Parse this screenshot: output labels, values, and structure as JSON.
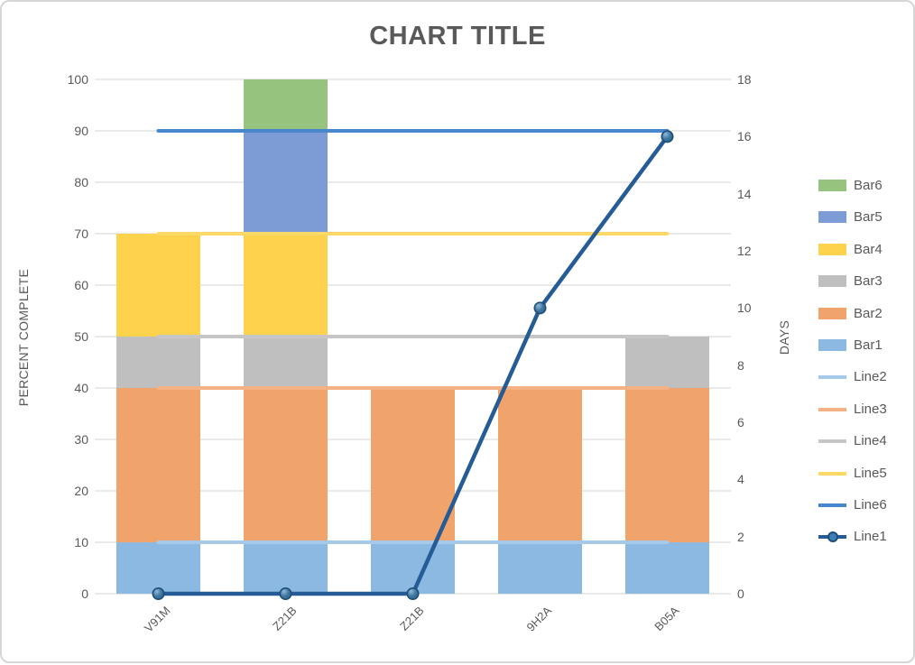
{
  "title": "CHART TITLE",
  "chart_data": {
    "type": "combo-stacked-bar-line",
    "categories": [
      "V91M",
      "Z21B",
      "Z21B",
      "9H2A",
      "B05A"
    ],
    "left_axis": {
      "title": "PERCENT COMPLETE",
      "min": 0,
      "max": 100,
      "step": 10
    },
    "right_axis": {
      "title": "DAYS",
      "min": 0,
      "max": 18,
      "step": 2
    },
    "grid": true,
    "legend_position": "right",
    "bar_series": [
      {
        "name": "Bar1",
        "color": "#8CB9E2",
        "values": [
          10,
          10,
          10,
          10,
          10
        ]
      },
      {
        "name": "Bar2",
        "color": "#F0A46C",
        "values": [
          30,
          30,
          30,
          30,
          30
        ]
      },
      {
        "name": "Bar3",
        "color": "#BFBFBF",
        "values": [
          10,
          10,
          0,
          0,
          10
        ]
      },
      {
        "name": "Bar4",
        "color": "#FFD24D",
        "values": [
          20,
          20,
          0,
          0,
          0
        ]
      },
      {
        "name": "Bar5",
        "color": "#7D9BD4",
        "values": [
          0,
          20,
          0,
          0,
          0
        ]
      },
      {
        "name": "Bar6",
        "color": "#96C47E",
        "values": [
          0,
          10,
          0,
          0,
          0
        ]
      }
    ],
    "line_series": [
      {
        "name": "Line2",
        "color": "#A6C9EA",
        "axis": "left",
        "marker": false,
        "values": [
          10,
          10,
          10,
          10,
          10
        ]
      },
      {
        "name": "Line3",
        "color": "#F4B183",
        "axis": "left",
        "marker": false,
        "values": [
          40,
          40,
          40,
          40,
          40
        ]
      },
      {
        "name": "Line4",
        "color": "#C6C6C6",
        "axis": "left",
        "marker": false,
        "values": [
          50,
          50,
          50,
          50,
          50
        ]
      },
      {
        "name": "Line5",
        "color": "#FFD966",
        "axis": "left",
        "marker": false,
        "values": [
          70,
          70,
          70,
          70,
          70
        ]
      },
      {
        "name": "Line6",
        "color": "#4987CD",
        "axis": "left",
        "marker": false,
        "values": [
          90,
          90,
          90,
          90,
          90
        ]
      },
      {
        "name": "Line1",
        "color": "#265C96",
        "axis": "right",
        "marker": true,
        "values": [
          0,
          0,
          0,
          10,
          16
        ]
      }
    ],
    "legend_order": [
      "Bar6",
      "Bar5",
      "Bar4",
      "Bar3",
      "Bar2",
      "Bar1",
      "Line2",
      "Line3",
      "Line4",
      "Line5",
      "Line6",
      "Line1"
    ]
  },
  "colors": {
    "text": "#595959",
    "gridline": "#E3E3E3",
    "marker_fill": "#3F7DB4",
    "marker_rim": "#1E4E77",
    "border": "#D6D6D6",
    "background": "#FFFFFF"
  }
}
